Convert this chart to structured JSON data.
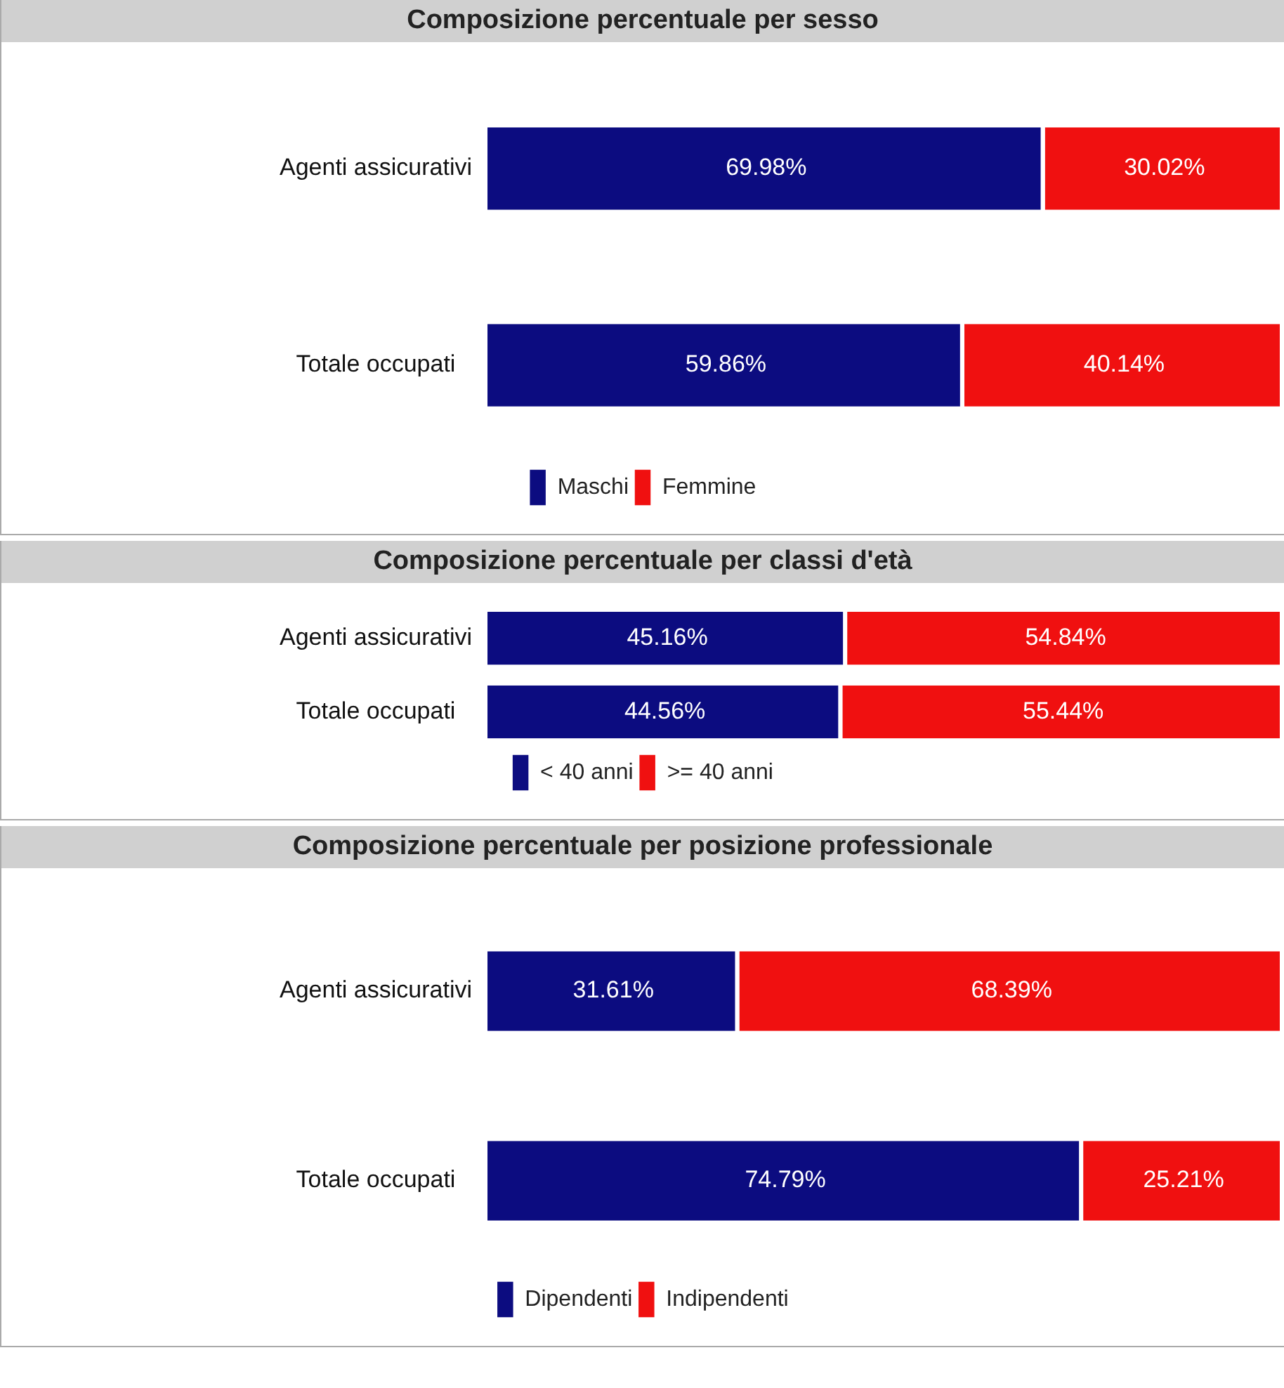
{
  "chart_data": [
    {
      "type": "bar",
      "title": "Composizione percentuale per sesso",
      "orientation": "horizontal",
      "stacked": true,
      "categories": [
        "Agenti assicurativi",
        "Totale occupati"
      ],
      "xlim": [
        0,
        100
      ],
      "tick_labels": "y",
      "grid": false,
      "legend": "bottom",
      "series": [
        {
          "name": "Maschi",
          "color": "#0c0c80",
          "values": [
            69.98,
            59.86
          ],
          "value_labels": [
            "69.98%",
            "59.86%"
          ]
        },
        {
          "name": "Femmine",
          "color": "#f01010",
          "values": [
            30.02,
            40.14
          ],
          "value_labels": [
            "30.02%",
            "40.14%"
          ]
        }
      ]
    },
    {
      "type": "bar",
      "title": "Composizione percentuale per classi d'età",
      "orientation": "horizontal",
      "stacked": true,
      "categories": [
        "Agenti assicurativi",
        "Totale occupati"
      ],
      "xlim": [
        0,
        100
      ],
      "tick_labels": "y",
      "grid": false,
      "legend": "bottom",
      "series": [
        {
          "name": "< 40 anni",
          "color": "#0c0c80",
          "values": [
            45.16,
            44.56
          ],
          "value_labels": [
            "45.16%",
            "44.56%"
          ]
        },
        {
          "name": ">= 40 anni",
          "color": "#f01010",
          "values": [
            54.84,
            55.44
          ],
          "value_labels": [
            "54.84%",
            "55.44%"
          ]
        }
      ]
    },
    {
      "type": "bar",
      "title": "Composizione percentuale per posizione professionale",
      "orientation": "horizontal",
      "stacked": true,
      "categories": [
        "Agenti assicurativi",
        "Totale occupati"
      ],
      "xlim": [
        0,
        100
      ],
      "tick_labels": "y",
      "grid": false,
      "legend": "bottom",
      "series": [
        {
          "name": "Dipendenti",
          "color": "#0c0c80",
          "values": [
            31.61,
            74.79
          ],
          "value_labels": [
            "31.61%",
            "74.79%"
          ]
        },
        {
          "name": "Indipendenti",
          "color": "#f01010",
          "values": [
            68.39,
            25.21
          ],
          "value_labels": [
            "68.39%",
            "25.21%"
          ]
        }
      ]
    }
  ]
}
